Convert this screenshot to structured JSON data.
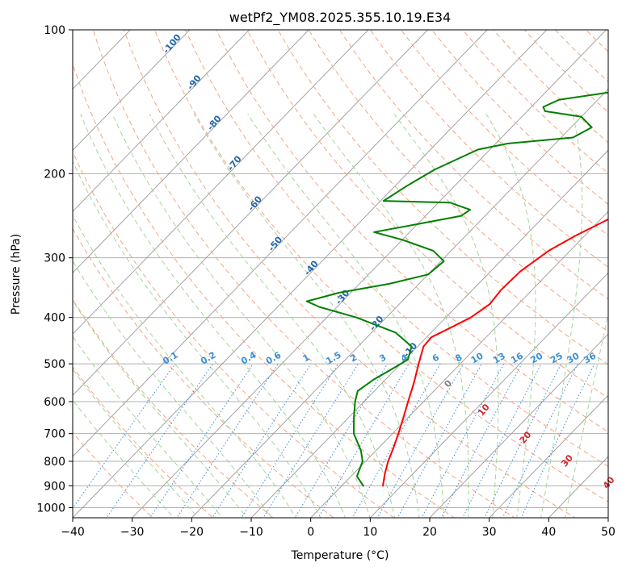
{
  "chart_data": {
    "type": "line",
    "title": "wetPf2_YM08.2025.355.10.19.E34",
    "xlabel": "Temperature (°C)",
    "ylabel": "Pressure (hPa)",
    "xlim": [
      -40,
      50
    ],
    "ylim": [
      1050,
      100
    ],
    "y_scale": "log",
    "grid": true,
    "x_ticks": [
      -40,
      -30,
      -20,
      -10,
      0,
      10,
      20,
      30,
      40,
      50
    ],
    "x_tick_labels": [
      "−40",
      "−30",
      "−20",
      "−10",
      "0",
      "10",
      "20",
      "30",
      "40",
      "50"
    ],
    "y_ticks": [
      100,
      200,
      300,
      400,
      500,
      600,
      700,
      800,
      900,
      1000
    ],
    "y_tick_labels": [
      "100",
      "200",
      "300",
      "400",
      "500",
      "600",
      "700",
      "800",
      "900",
      "1000"
    ],
    "series": [
      {
        "kind": "temperature",
        "color": "#ff0000",
        "points": [
          [
            7.0,
            903
          ],
          [
            5.3,
            850
          ],
          [
            3.8,
            800
          ],
          [
            2.5,
            750
          ],
          [
            1.0,
            700
          ],
          [
            -0.7,
            650
          ],
          [
            -2.6,
            600
          ],
          [
            -4.6,
            550
          ],
          [
            -7.0,
            500
          ],
          [
            -9.0,
            460
          ],
          [
            -9.2,
            440
          ],
          [
            -7.5,
            420
          ],
          [
            -5.8,
            400
          ],
          [
            -4.8,
            375
          ],
          [
            -5.2,
            350
          ],
          [
            -5.0,
            320
          ],
          [
            -3.6,
            290
          ],
          [
            -1.6,
            270
          ],
          [
            2.6,
            240
          ],
          [
            8.0,
            210
          ],
          [
            9.7,
            200
          ],
          [
            12.6,
            180
          ],
          [
            15.6,
            160
          ],
          [
            19.5,
            140
          ],
          [
            24.5,
            125
          ],
          [
            28.8,
            112
          ],
          [
            32.5,
            100
          ]
        ]
      },
      {
        "kind": "dewpoint",
        "color": "#008000",
        "points": [
          [
            3.8,
            903
          ],
          [
            1.0,
            860
          ],
          [
            -0.5,
            800
          ],
          [
            -2.5,
            760
          ],
          [
            -6.5,
            700
          ],
          [
            -9.0,
            650
          ],
          [
            -11.5,
            600
          ],
          [
            -12.8,
            570
          ],
          [
            -12.0,
            540
          ],
          [
            -10.5,
            510
          ],
          [
            -9.5,
            490
          ],
          [
            -11.0,
            460
          ],
          [
            -16.0,
            430
          ],
          [
            -25.0,
            400
          ],
          [
            -33.0,
            380
          ],
          [
            -36.0,
            370
          ],
          [
            -32.0,
            355
          ],
          [
            -25.0,
            340
          ],
          [
            -20.0,
            325
          ],
          [
            -19.5,
            305
          ],
          [
            -23.0,
            290
          ],
          [
            -30.0,
            275
          ],
          [
            -36.0,
            265
          ],
          [
            -30.0,
            255
          ],
          [
            -24.0,
            245
          ],
          [
            -23.5,
            238
          ],
          [
            -28.0,
            230
          ],
          [
            -39.5,
            228
          ],
          [
            -38.0,
            212
          ],
          [
            -36.0,
            196
          ],
          [
            -32.0,
            178
          ],
          [
            -28.0,
            173
          ],
          [
            -18.0,
            168
          ],
          [
            -16.5,
            160
          ],
          [
            -20.0,
            152
          ],
          [
            -27.0,
            148
          ],
          [
            -28.0,
            145
          ],
          [
            -26.5,
            140
          ],
          [
            -19.0,
            135
          ],
          [
            -10.0,
            130
          ],
          [
            -5.0,
            125
          ],
          [
            -4.0,
            118
          ],
          [
            -3.8,
            110
          ],
          [
            -3.7,
            100
          ]
        ]
      }
    ],
    "reference_lines": {
      "isotherms": "grey solid",
      "dry_adiabats": "light red dashed",
      "moist_adiabats": "light green dashed",
      "mixing_ratio": "blue dotted"
    },
    "dry_adiabat_labels": [
      "-100",
      "-90",
      "-80",
      "-70",
      "-60",
      "-50",
      "-40",
      "-30",
      "-20",
      "-10"
    ],
    "mixing_ratio_labels": [
      "0.1",
      "0.2",
      "0.4",
      "0.6",
      "1",
      "1.5",
      "2",
      "3",
      "4",
      "6",
      "8",
      "10",
      "13",
      "16",
      "20",
      "25",
      "30",
      "36"
    ],
    "moist_adiabat_labels": [
      "0",
      "10",
      "20",
      "30",
      "40"
    ],
    "colors": {
      "temperature": "#ff0000",
      "dewpoint": "#008000",
      "isotherm": "#999999",
      "dry_adiabat": "#f4a582",
      "moist_adiabat": "#a6d49b",
      "mixing_ratio": "#3a8fd6",
      "dry_label": "#2166ac",
      "mixing_label": "#3a8fd6",
      "moist_label_zero": "#808080",
      "moist_label": "#d6262b"
    }
  }
}
